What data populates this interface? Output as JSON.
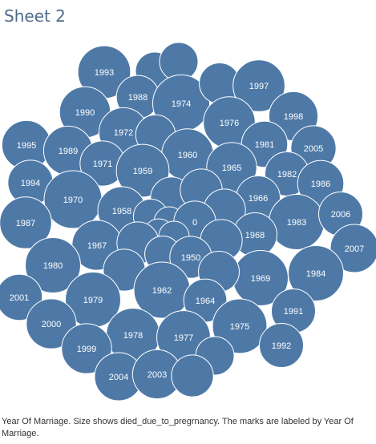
{
  "sheet_title": "Sheet 2",
  "caption": "Year Of Marriage.  Size shows died_due_to_pregrnancy.  The marks are labeled by Year Of Marriage.",
  "colors": {
    "bubble": "#4e79a7",
    "bubble_stroke": "#ffffff",
    "label": "#ffffff",
    "title": "#4e6b8c"
  },
  "chart_data": {
    "type": "packed-bubble",
    "size_field": "died_due_to_pregrnancy",
    "label_field": "Year Of Marriage",
    "bubbles": [
      {
        "label": "1993",
        "size": 30
      },
      {
        "label": "",
        "size": 16
      },
      {
        "label": "",
        "size": 16
      },
      {
        "label": "1988",
        "size": 20
      },
      {
        "label": "1974",
        "size": 35
      },
      {
        "label": "",
        "size": 18
      },
      {
        "label": "1997",
        "size": 29
      },
      {
        "label": "1990",
        "size": 28
      },
      {
        "label": "1972",
        "size": 26
      },
      {
        "label": "1976",
        "size": 29
      },
      {
        "label": "1998",
        "size": 26
      },
      {
        "label": "",
        "size": 17
      },
      {
        "label": "1995",
        "size": 26
      },
      {
        "label": "1989",
        "size": 26
      },
      {
        "label": "1981",
        "size": 23
      },
      {
        "label": "2005",
        "size": 22
      },
      {
        "label": "1960",
        "size": 29
      },
      {
        "label": "1971",
        "size": 22
      },
      {
        "label": "1959",
        "size": 30
      },
      {
        "label": "1965",
        "size": 27
      },
      {
        "label": "1982",
        "size": 21
      },
      {
        "label": "1994",
        "size": 22
      },
      {
        "label": "1986",
        "size": 23
      },
      {
        "label": "1970",
        "size": 36
      },
      {
        "label": "1966",
        "size": 21
      },
      {
        "label": "",
        "size": 19
      },
      {
        "label": "",
        "size": 19
      },
      {
        "label": "1958",
        "size": 25
      },
      {
        "label": "",
        "size": 19
      },
      {
        "label": "1983",
        "size": 33
      },
      {
        "label": "2006",
        "size": 21
      },
      {
        "label": "1987",
        "size": 29
      },
      {
        "label": "",
        "size": 13
      },
      {
        "label": "",
        "size": 10
      },
      {
        "label": "0",
        "size": 19
      },
      {
        "label": "1968",
        "size": 21
      },
      {
        "label": "",
        "size": 10
      },
      {
        "label": "",
        "size": 10
      },
      {
        "label": "1967",
        "size": 27
      },
      {
        "label": "",
        "size": 19
      },
      {
        "label": "",
        "size": 19
      },
      {
        "label": "2007",
        "size": 25
      },
      {
        "label": "1980",
        "size": 33
      },
      {
        "label": "",
        "size": 14
      },
      {
        "label": "1950",
        "size": 19
      },
      {
        "label": "",
        "size": 19
      },
      {
        "label": "1969",
        "size": 33
      },
      {
        "label": "1984",
        "size": 33
      },
      {
        "label": "",
        "size": 18
      },
      {
        "label": "1962",
        "size": 34
      },
      {
        "label": "1964",
        "size": 20
      },
      {
        "label": "2001",
        "size": 23
      },
      {
        "label": "1979",
        "size": 33
      },
      {
        "label": "1991",
        "size": 21
      },
      {
        "label": "2000",
        "size": 27
      },
      {
        "label": "1975",
        "size": 32
      },
      {
        "label": "1978",
        "size": 31
      },
      {
        "label": "1977",
        "size": 31
      },
      {
        "label": "1999",
        "size": 27
      },
      {
        "label": "1992",
        "size": 21
      },
      {
        "label": "",
        "size": 16
      },
      {
        "label": "2004",
        "size": 25
      },
      {
        "label": "2003",
        "size": 26
      },
      {
        "label": "",
        "size": 19
      }
    ]
  }
}
